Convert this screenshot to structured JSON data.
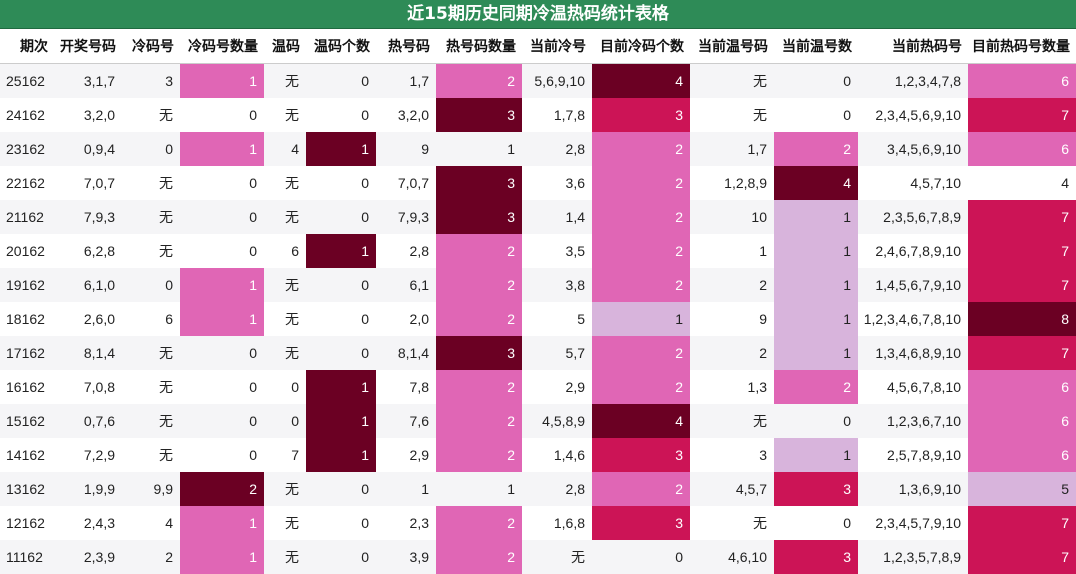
{
  "title": "近15期历史同期冷温热码统计表格",
  "columns": [
    "期次",
    "开奖号码",
    "冷码号",
    "冷码号数量",
    "温码",
    "温码个数",
    "热号码",
    "热号码数量",
    "当前冷号",
    "目前冷码个数",
    "当前温号码",
    "当前温号数",
    "当前热码号",
    "目前热码号数量"
  ],
  "colors": {
    "pink": "#e066b5",
    "lavender": "#d8b4dc",
    "crimson": "#cc1456",
    "maroon": "#6b0023",
    "header_green": "#2e8b57"
  },
  "rows": [
    {
      "cells": [
        "25162",
        "3,1,7",
        "3",
        "1",
        "无",
        "0",
        "1,7",
        "2",
        "5,6,9,10",
        "4",
        "无",
        "0",
        "1,2,3,4,7,8",
        "6"
      ],
      "c": [
        0,
        0,
        0,
        1,
        0,
        0,
        0,
        1,
        0,
        4,
        0,
        0,
        0,
        1
      ]
    },
    {
      "cells": [
        "24162",
        "3,2,0",
        "无",
        "0",
        "无",
        "0",
        "3,2,0",
        "3",
        "1,7,8",
        "3",
        "无",
        "0",
        "2,3,4,5,6,9,10",
        "7"
      ],
      "c": [
        0,
        0,
        0,
        0,
        0,
        0,
        0,
        4,
        0,
        3,
        0,
        0,
        0,
        3
      ]
    },
    {
      "cells": [
        "23162",
        "0,9,4",
        "0",
        "1",
        "4",
        "1",
        "9",
        "1",
        "2,8",
        "2",
        "1,7",
        "2",
        "3,4,5,6,9,10",
        "6"
      ],
      "c": [
        0,
        0,
        0,
        1,
        0,
        4,
        0,
        0,
        0,
        1,
        0,
        1,
        0,
        1
      ]
    },
    {
      "cells": [
        "22162",
        "7,0,7",
        "无",
        "0",
        "无",
        "0",
        "7,0,7",
        "3",
        "3,6",
        "2",
        "1,2,8,9",
        "4",
        "4,5,7,10",
        "4"
      ],
      "c": [
        0,
        0,
        0,
        0,
        0,
        0,
        0,
        4,
        0,
        1,
        0,
        4,
        0,
        0
      ]
    },
    {
      "cells": [
        "21162",
        "7,9,3",
        "无",
        "0",
        "无",
        "0",
        "7,9,3",
        "3",
        "1,4",
        "2",
        "10",
        "1",
        "2,3,5,6,7,8,9",
        "7"
      ],
      "c": [
        0,
        0,
        0,
        0,
        0,
        0,
        0,
        4,
        0,
        1,
        0,
        2,
        0,
        3
      ]
    },
    {
      "cells": [
        "20162",
        "6,2,8",
        "无",
        "0",
        "6",
        "1",
        "2,8",
        "2",
        "3,5",
        "2",
        "1",
        "1",
        "2,4,6,7,8,9,10",
        "7"
      ],
      "c": [
        0,
        0,
        0,
        0,
        0,
        4,
        0,
        1,
        0,
        1,
        0,
        2,
        0,
        3
      ]
    },
    {
      "cells": [
        "19162",
        "6,1,0",
        "0",
        "1",
        "无",
        "0",
        "6,1",
        "2",
        "3,8",
        "2",
        "2",
        "1",
        "1,4,5,6,7,9,10",
        "7"
      ],
      "c": [
        0,
        0,
        0,
        1,
        0,
        0,
        0,
        1,
        0,
        1,
        0,
        2,
        0,
        3
      ]
    },
    {
      "cells": [
        "18162",
        "2,6,0",
        "6",
        "1",
        "无",
        "0",
        "2,0",
        "2",
        "5",
        "1",
        "9",
        "1",
        "1,2,3,4,6,7,8,10",
        "8"
      ],
      "c": [
        0,
        0,
        0,
        1,
        0,
        0,
        0,
        1,
        0,
        2,
        0,
        2,
        0,
        4
      ]
    },
    {
      "cells": [
        "17162",
        "8,1,4",
        "无",
        "0",
        "无",
        "0",
        "8,1,4",
        "3",
        "5,7",
        "2",
        "2",
        "1",
        "1,3,4,6,8,9,10",
        "7"
      ],
      "c": [
        0,
        0,
        0,
        0,
        0,
        0,
        0,
        4,
        0,
        1,
        0,
        2,
        0,
        3
      ]
    },
    {
      "cells": [
        "16162",
        "7,0,8",
        "无",
        "0",
        "0",
        "1",
        "7,8",
        "2",
        "2,9",
        "2",
        "1,3",
        "2",
        "4,5,6,7,8,10",
        "6"
      ],
      "c": [
        0,
        0,
        0,
        0,
        0,
        4,
        0,
        1,
        0,
        1,
        0,
        1,
        0,
        1
      ]
    },
    {
      "cells": [
        "15162",
        "0,7,6",
        "无",
        "0",
        "0",
        "1",
        "7,6",
        "2",
        "4,5,8,9",
        "4",
        "无",
        "0",
        "1,2,3,6,7,10",
        "6"
      ],
      "c": [
        0,
        0,
        0,
        0,
        0,
        4,
        0,
        1,
        0,
        4,
        0,
        0,
        0,
        1
      ]
    },
    {
      "cells": [
        "14162",
        "7,2,9",
        "无",
        "0",
        "7",
        "1",
        "2,9",
        "2",
        "1,4,6",
        "3",
        "3",
        "1",
        "2,5,7,8,9,10",
        "6"
      ],
      "c": [
        0,
        0,
        0,
        0,
        0,
        4,
        0,
        1,
        0,
        3,
        0,
        2,
        0,
        1
      ]
    },
    {
      "cells": [
        "13162",
        "1,9,9",
        "9,9",
        "2",
        "无",
        "0",
        "1",
        "1",
        "2,8",
        "2",
        "4,5,7",
        "3",
        "1,3,6,9,10",
        "5"
      ],
      "c": [
        0,
        0,
        0,
        4,
        0,
        0,
        0,
        0,
        0,
        1,
        0,
        3,
        0,
        2
      ]
    },
    {
      "cells": [
        "12162",
        "2,4,3",
        "4",
        "1",
        "无",
        "0",
        "2,3",
        "2",
        "1,6,8",
        "3",
        "无",
        "0",
        "2,3,4,5,7,9,10",
        "7"
      ],
      "c": [
        0,
        0,
        0,
        1,
        0,
        0,
        0,
        1,
        0,
        3,
        0,
        0,
        0,
        3
      ]
    },
    {
      "cells": [
        "11162",
        "2,3,9",
        "2",
        "1",
        "无",
        "0",
        "3,9",
        "2",
        "无",
        "0",
        "4,6,10",
        "3",
        "1,2,3,5,7,8,9",
        "7"
      ],
      "c": [
        0,
        0,
        0,
        1,
        0,
        0,
        0,
        1,
        0,
        0,
        0,
        3,
        0,
        3
      ]
    }
  ]
}
